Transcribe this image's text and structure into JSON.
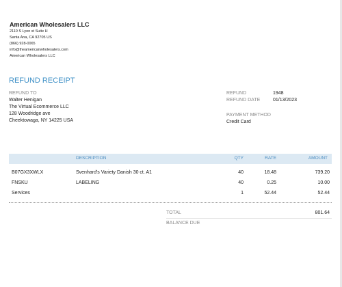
{
  "company": {
    "name": "American Wholesalers LLC",
    "address_lines": [
      "2110 S Lyon st Suite H",
      "Santa Ana, CA  92705 US",
      "(866) 928-0065",
      "info@theamericanwholesalers.com",
      "American Wholesalers LLC"
    ]
  },
  "document_title": "REFUND RECEIPT",
  "refund_to": {
    "label": "REFUND TO",
    "lines": [
      "Walter Henigan",
      "The Virtual Ecommerce LLC",
      "128 Woodridge ave",
      "Cheektowaga, NY  14225 USA"
    ]
  },
  "details": [
    {
      "label": "REFUND",
      "value": "1948"
    },
    {
      "label": "REFUND DATE",
      "value": "01/13/2023"
    }
  ],
  "payment": {
    "label": "PAYMENT METHOD",
    "value": "Credit Card"
  },
  "table": {
    "header": [
      "DESCRIPTION",
      "QTY",
      "RATE",
      "AMOUNT"
    ],
    "rows": [
      [
        "B07GX3XWLX",
        "Svenhard's Variety Danish 30 ct. A1",
        "40",
        "18.48",
        "739.20"
      ],
      [
        "FNSKU",
        "LABELING",
        "40",
        "0.25",
        "10.00"
      ],
      [
        "Services",
        "",
        "1",
        "52.44",
        "52.44"
      ]
    ]
  },
  "totals": {
    "total_label": "TOTAL",
    "total_value": "801.64",
    "balance_label": "BALANCE DUE"
  }
}
